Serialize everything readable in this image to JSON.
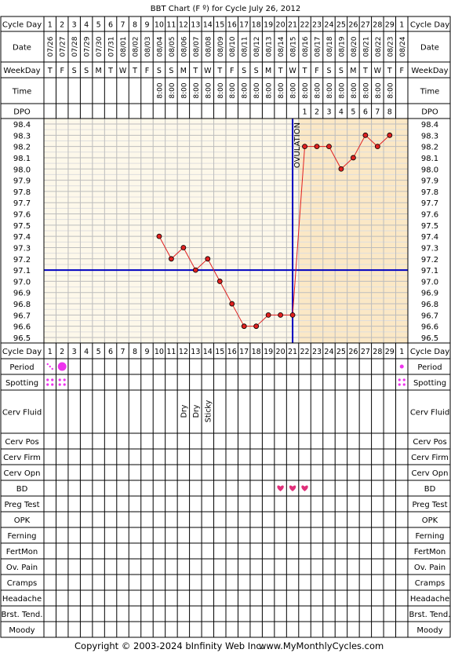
{
  "title": "BBT Chart (F º) for Cycle July 26, 2012",
  "copyright": "Copyright © 2003-2024 bInfinity Web Inc.",
  "site_url": "www.MyMonthlyCycles.com",
  "row_labels": {
    "cycle_day": "Cycle Day",
    "date": "Date",
    "weekday": "WeekDay",
    "time": "Time",
    "dpo": "DPO",
    "period": "Period",
    "spotting": "Spotting",
    "cerv_fluid": "Cerv Fluid",
    "cerv_pos": "Cerv Pos",
    "cerv_firm": "Cerv Firm",
    "cerv_opn": "Cerv Opn",
    "bd": "BD",
    "preg_test": "Preg Test",
    "opk": "OPK",
    "ferning": "Ferning",
    "fertmon": "FertMon",
    "ov_pain": "Ov. Pain",
    "cramps": "Cramps",
    "headache": "Headache",
    "brst_tend": "Brst. Tend.",
    "moody": "Moody"
  },
  "cycle_days": [
    "1",
    "2",
    "3",
    "4",
    "5",
    "6",
    "7",
    "8",
    "9",
    "10",
    "11",
    "12",
    "13",
    "14",
    "15",
    "16",
    "17",
    "18",
    "19",
    "20",
    "21",
    "22",
    "23",
    "24",
    "25",
    "26",
    "27",
    "28",
    "29",
    "1"
  ],
  "dates": [
    "07/26",
    "07/27",
    "07/28",
    "07/29",
    "07/30",
    "07/31",
    "08/01",
    "08/02",
    "08/03",
    "08/04",
    "08/05",
    "08/06",
    "08/07",
    "08/08",
    "08/09",
    "08/10",
    "08/11",
    "08/12",
    "08/13",
    "08/14",
    "08/15",
    "08/16",
    "08/17",
    "08/18",
    "08/19",
    "08/20",
    "08/21",
    "08/22",
    "08/23",
    "08/24"
  ],
  "weekdays": [
    "T",
    "F",
    "S",
    "S",
    "M",
    "T",
    "W",
    "T",
    "F",
    "S",
    "S",
    "M",
    "T",
    "W",
    "T",
    "F",
    "S",
    "S",
    "M",
    "T",
    "W",
    "T",
    "F",
    "S",
    "S",
    "M",
    "T",
    "W",
    "T",
    "F"
  ],
  "times": [
    "",
    "",
    "",
    "",
    "",
    "",
    "",
    "",
    "",
    "8:00",
    "8:00",
    "8:00",
    "8:00",
    "8:00",
    "8:00",
    "8:00",
    "8:00",
    "8:00",
    "8:00",
    "8:00",
    "8:00",
    "8:00",
    "8:00",
    "8:00",
    "8:00",
    "8:00",
    "8:00",
    "8:00",
    "8:00",
    ""
  ],
  "dpo": [
    "",
    "",
    "",
    "",
    "",
    "",
    "",
    "",
    "",
    "",
    "",
    "",
    "",
    "",
    "",
    "",
    "",
    "",
    "",
    "",
    "",
    "1",
    "2",
    "3",
    "4",
    "5",
    "6",
    "7",
    "8",
    ""
  ],
  "ovulation_label": "OVULATION",
  "cerv_fluid": [
    "",
    "",
    "",
    "",
    "",
    "",
    "",
    "",
    "",
    "",
    "",
    "Dry",
    "Dry",
    "Sticky",
    "",
    "",
    "",
    "",
    "",
    "",
    "",
    "",
    "",
    "",
    "",
    "",
    "",
    "",
    "",
    ""
  ],
  "period": [
    "spotting",
    "heavy",
    "",
    "",
    "",
    "",
    "",
    "",
    "",
    "",
    "",
    "",
    "",
    "",
    "",
    "",
    "",
    "",
    "",
    "",
    "",
    "",
    "",
    "",
    "",
    "",
    "",
    "",
    "",
    "light"
  ],
  "spotting": [
    "yes",
    "yes",
    "",
    "",
    "",
    "",
    "",
    "",
    "",
    "",
    "",
    "",
    "",
    "",
    "",
    "",
    "",
    "",
    "",
    "",
    "",
    "",
    "",
    "",
    "",
    "",
    "",
    "",
    "",
    "yes"
  ],
  "bd": [
    "",
    "",
    "",
    "",
    "",
    "",
    "",
    "",
    "",
    "",
    "",
    "",
    "",
    "",
    "",
    "",
    "",
    "",
    "",
    "yes",
    "yes",
    "yes",
    "",
    "",
    "",
    "",
    "",
    "",
    "",
    ""
  ],
  "colors": {
    "pre_ovulation_bg": "#fdf8ea",
    "post_ovulation_bg": "#fbe8c6",
    "temp_line": "#e02020",
    "temp_point": "#e02020",
    "coverline": "#0000c0",
    "ovulation_line": "#0000c0",
    "period_marker": "#ee33ee",
    "bd_heart": "#e0307a"
  },
  "chart_data": {
    "type": "line",
    "title": "BBT Chart (F º) for Cycle July 26, 2012",
    "x": [
      "1",
      "2",
      "3",
      "4",
      "5",
      "6",
      "7",
      "8",
      "9",
      "10",
      "11",
      "12",
      "13",
      "14",
      "15",
      "16",
      "17",
      "18",
      "19",
      "20",
      "21",
      "22",
      "23",
      "24",
      "25",
      "26",
      "27",
      "28",
      "29",
      "1"
    ],
    "x_dates": [
      "07/26",
      "07/27",
      "07/28",
      "07/29",
      "07/30",
      "07/31",
      "08/01",
      "08/02",
      "08/03",
      "08/04",
      "08/05",
      "08/06",
      "08/07",
      "08/08",
      "08/09",
      "08/10",
      "08/11",
      "08/12",
      "08/13",
      "08/14",
      "08/15",
      "08/16",
      "08/17",
      "08/18",
      "08/19",
      "08/20",
      "08/21",
      "08/22",
      "08/23",
      "08/24"
    ],
    "values": [
      null,
      null,
      null,
      null,
      null,
      null,
      null,
      null,
      null,
      97.4,
      97.2,
      97.3,
      97.1,
      97.2,
      97.0,
      96.8,
      96.6,
      96.6,
      96.7,
      96.7,
      96.7,
      98.2,
      98.2,
      98.2,
      98.0,
      98.1,
      98.3,
      98.2,
      98.3,
      null
    ],
    "ylim": [
      96.5,
      98.4
    ],
    "y_ticks": [
      "98.4",
      "98.3",
      "98.2",
      "98.1",
      "98.0",
      "97.9",
      "97.8",
      "97.7",
      "97.6",
      "97.5",
      "97.4",
      "97.3",
      "97.2",
      "97.1",
      "97.0",
      "96.9",
      "96.8",
      "96.7",
      "96.6",
      "96.5"
    ],
    "coverline": 97.1,
    "ovulation_day_index": 20,
    "grid": true
  }
}
